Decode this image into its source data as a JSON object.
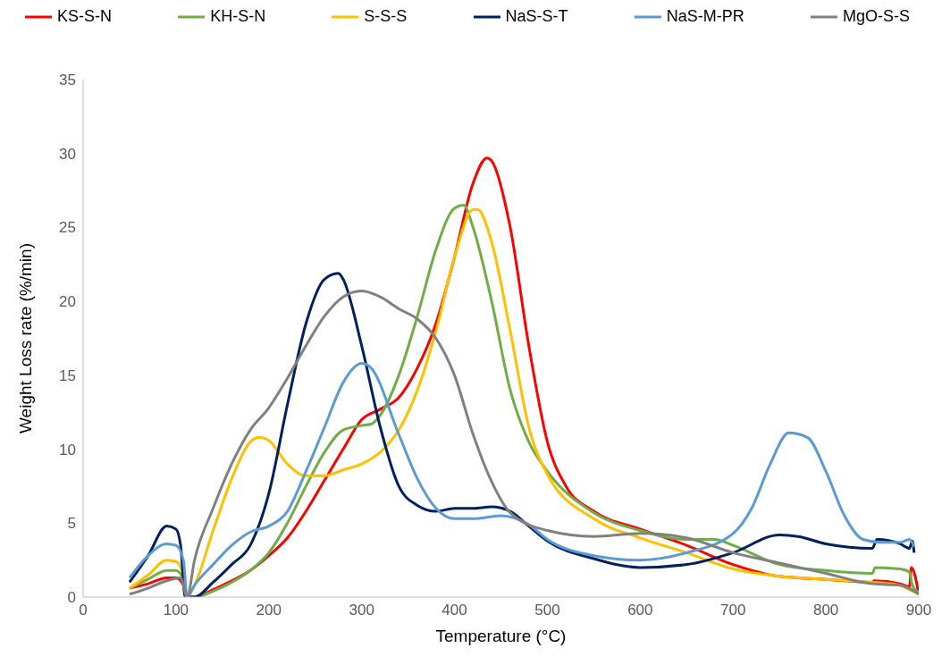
{
  "chart_data": {
    "type": "line",
    "xlabel": "Temperature (°C)",
    "ylabel": "Weight Loss rate (%/min)",
    "xlim": [
      0,
      900
    ],
    "xticks": [
      0,
      100,
      200,
      300,
      400,
      500,
      600,
      700,
      800,
      900
    ],
    "ylim": [
      0,
      35
    ],
    "yticks": [
      0,
      5,
      10,
      15,
      20,
      25,
      30,
      35
    ],
    "grid": false,
    "legend": "top",
    "marker": "none",
    "line_style": "solid",
    "series": [
      {
        "name": "KS-S-N",
        "color": "#ff0000",
        "x": [
          50,
          70,
          90,
          100,
          108,
          112,
          120,
          140,
          160,
          180,
          200,
          220,
          240,
          260,
          280,
          300,
          320,
          340,
          360,
          380,
          400,
          420,
          435,
          440,
          460,
          480,
          500,
          520,
          550,
          600,
          650,
          700,
          750,
          800,
          850,
          852,
          880,
          890,
          892,
          900
        ],
        "values": [
          0.6,
          0.9,
          1.3,
          1.3,
          0.8,
          0,
          0,
          0.5,
          1.1,
          1.8,
          2.8,
          4,
          5.8,
          7.9,
          10,
          12,
          12.7,
          13.5,
          15.5,
          18.5,
          23,
          28,
          29.7,
          29.5,
          25,
          17,
          10.5,
          7.5,
          5.8,
          4.6,
          3.5,
          2.2,
          1.4,
          1.2,
          1,
          1.1,
          0.9,
          0.7,
          2,
          0.2
        ]
      },
      {
        "name": "KH-S-N",
        "color": "#70ad47",
        "x": [
          50,
          70,
          90,
          100,
          108,
          112,
          120,
          140,
          160,
          180,
          200,
          220,
          240,
          260,
          280,
          300,
          310,
          320,
          340,
          360,
          380,
          400,
          410,
          420,
          440,
          460,
          480,
          500,
          550,
          600,
          650,
          680,
          700,
          750,
          800,
          850,
          853,
          880,
          890,
          893,
          900
        ],
        "values": [
          0.6,
          1.2,
          1.8,
          1.8,
          1.2,
          0,
          0,
          0.4,
          1,
          1.8,
          3,
          5,
          7.5,
          9.8,
          11.3,
          11.6,
          11.7,
          12.3,
          15,
          19,
          23.5,
          26.3,
          26.5,
          25,
          20,
          14,
          10.5,
          8.5,
          5.7,
          4.5,
          3.9,
          3.9,
          3.5,
          2.2,
          1.8,
          1.6,
          2,
          1.9,
          1.7,
          0.8,
          0.3
        ]
      },
      {
        "name": "S-S-S",
        "color": "#ffc000",
        "x": [
          50,
          70,
          90,
          100,
          108,
          112,
          120,
          140,
          160,
          180,
          190,
          200,
          220,
          240,
          260,
          280,
          300,
          320,
          340,
          360,
          380,
          400,
          420,
          425,
          440,
          460,
          480,
          500,
          550,
          600,
          650,
          700,
          750,
          800,
          850,
          880,
          890,
          900
        ],
        "values": [
          0.6,
          1.5,
          2.5,
          2.4,
          1.5,
          0,
          0.8,
          4.5,
          8,
          10.5,
          10.8,
          10.6,
          9,
          8.2,
          8.2,
          8.6,
          9,
          9.8,
          11.3,
          14,
          18,
          23,
          26.2,
          26.2,
          24,
          18,
          11.5,
          8.3,
          5.3,
          4,
          3,
          1.9,
          1.4,
          1.2,
          1,
          0.8,
          0.5,
          0.2
        ]
      },
      {
        "name": "NaS-S-T",
        "color": "#002060",
        "x": [
          50,
          70,
          90,
          100,
          105,
          110,
          120,
          140,
          160,
          180,
          200,
          220,
          240,
          260,
          275,
          280,
          300,
          320,
          340,
          360,
          380,
          400,
          420,
          440,
          460,
          480,
          500,
          550,
          600,
          650,
          700,
          750,
          770,
          800,
          850,
          855,
          880,
          890,
          893,
          895
        ],
        "values": [
          1,
          2.8,
          4.8,
          4.6,
          3.5,
          0,
          0,
          1,
          2.2,
          3.5,
          7,
          13,
          18.5,
          21.5,
          21.9,
          21.5,
          17,
          11.5,
          7.5,
          6.2,
          5.8,
          6,
          6,
          6.1,
          5.8,
          4.8,
          3.8,
          2.6,
          2,
          2.2,
          3,
          4.2,
          4.1,
          3.6,
          3.3,
          3.9,
          3.6,
          3.3,
          3.8,
          3
        ]
      },
      {
        "name": "NaS-M-PR",
        "color": "#5b9bd5",
        "x": [
          50,
          70,
          90,
          100,
          108,
          112,
          120,
          140,
          160,
          180,
          200,
          220,
          240,
          260,
          280,
          300,
          310,
          340,
          360,
          380,
          400,
          420,
          450,
          480,
          500,
          550,
          600,
          650,
          700,
          720,
          740,
          760,
          780,
          800,
          820,
          840,
          860,
          880,
          890,
          895
        ],
        "values": [
          1.3,
          2.8,
          3.6,
          3.5,
          2.5,
          0,
          0.8,
          2.2,
          3.5,
          4.4,
          4.8,
          5.8,
          8.5,
          11.5,
          14.5,
          15.8,
          15.5,
          11,
          8,
          6,
          5.3,
          5.3,
          5.5,
          4.9,
          3.9,
          2.8,
          2.5,
          3,
          4.3,
          6,
          9,
          11.1,
          10.8,
          8.5,
          5.5,
          3.9,
          3.7,
          3.7,
          3.9,
          3.4
        ]
      },
      {
        "name": "MgO-S-S",
        "color": "#808080",
        "x": [
          50,
          70,
          90,
          105,
          112,
          120,
          140,
          160,
          180,
          200,
          220,
          240,
          260,
          280,
          300,
          320,
          340,
          360,
          380,
          400,
          420,
          440,
          460,
          500,
          550,
          600,
          650,
          700,
          750,
          800,
          850,
          880,
          895,
          900
        ],
        "values": [
          0.2,
          0.6,
          1.1,
          1.3,
          0,
          2.5,
          6,
          9,
          11.3,
          12.8,
          14.8,
          17,
          19,
          20.3,
          20.7,
          20.3,
          19.5,
          18.8,
          17.5,
          15,
          11,
          7.8,
          5.7,
          4.5,
          4.1,
          4.3,
          4,
          3,
          2.3,
          1.6,
          0.9,
          0.8,
          0.4,
          0.2
        ]
      }
    ]
  }
}
